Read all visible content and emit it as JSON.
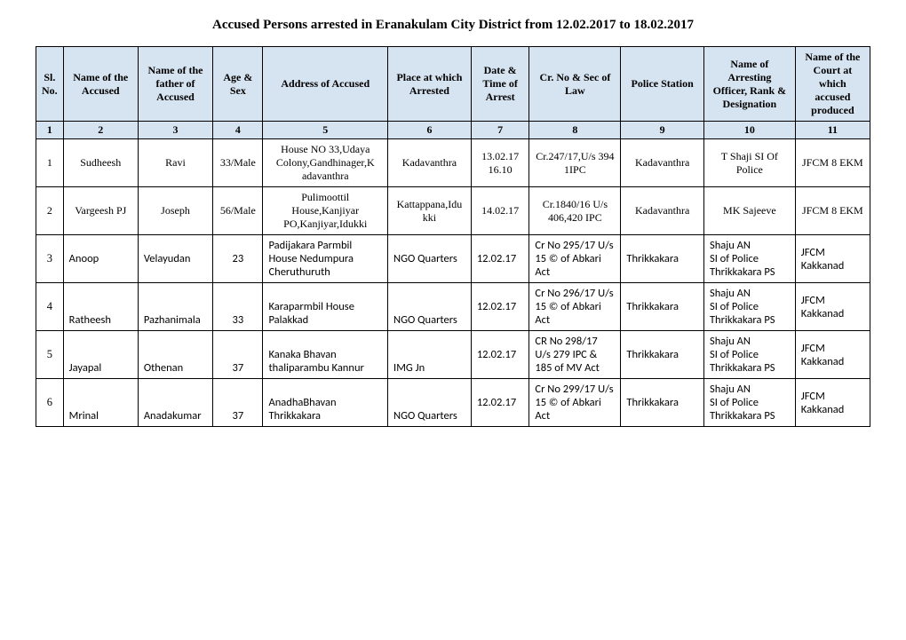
{
  "title": "Accused Persons arrested in   Eranakulam City    District from    12.02.2017 to 18.02.2017",
  "headers": {
    "sl": "Sl. No.",
    "name": "Name of the Accused",
    "father": "Name of the father of Accused",
    "age": "Age & Sex",
    "address": "Address of Accused",
    "place": "Place at which Arrested",
    "datetime": "Date & Time of Arrest",
    "crno": "Cr. No & Sec of Law",
    "station": "Police Station",
    "officer": "Name of Arresting Officer, Rank & Designation",
    "court": "Name of the Court at which accused produced"
  },
  "colnums": [
    "1",
    "2",
    "3",
    "4",
    "5",
    "6",
    "7",
    "8",
    "9",
    "10",
    "11"
  ],
  "rows": [
    {
      "sl": "1",
      "name": "Sudheesh",
      "father": "Ravi",
      "age": "33/Male",
      "address": "House NO  33,Udaya Colony,Gandhinager,K adavanthra",
      "place": "Kadavanthra",
      "datetime": "13.02.17 16.10",
      "crno": "Cr.247/17,U/s 394 1IPC",
      "station": "Kadavanthra",
      "officer": "T Shaji SI Of Police",
      "court": "JFCM 8 EKM",
      "style": "center"
    },
    {
      "sl": "2",
      "name": "Vargeesh PJ",
      "father": "Joseph",
      "age": "56/Male",
      "address": "Pulimoottil House,Kanjiyar PO,Kanjiyar,Idukki",
      "place": "Kattappana,Idu kki",
      "datetime": "14.02.17",
      "crno": "Cr.1840/16 U/s 406,420 IPC",
      "station": "Kadavanthra",
      "officer": "MK Sajeeve",
      "court": "JFCM 8 EKM",
      "style": "center"
    },
    {
      "sl": "3",
      "name": "Anoop",
      "father": "Velayudan",
      "age": "23",
      "address": "Padijakara Parmbil House\nNedumpura Cheruthuruth",
      "place": "NGO Quarters",
      "datetime": "12.02.17",
      "crno": "Cr No 295/17 U/s 15 © of Abkari Act",
      "station": "Thrikkakara",
      "officer": "Shaju AN\nSI of Police Thrikkakara PS",
      "court": "JFCM Kakkanad",
      "style": "calibri"
    },
    {
      "sl": "4",
      "name": "Ratheesh",
      "father": "Pazhanimala",
      "age": "33",
      "address": "Karaparmbil House Palakkad",
      "place": "NGO Quarters",
      "datetime": "12.02.17",
      "crno": "Cr No 296/17 U/s 15 © of Abkari Act",
      "station": "Thrikkakara",
      "officer": "Shaju AN\nSI of Police Thrikkakara PS",
      "court": "JFCM Kakkanad",
      "style": "calibri-bottom"
    },
    {
      "sl": "5",
      "name": "Jayapal",
      "father": "Othenan",
      "age": "37",
      "address": "Kanaka Bhavan thaliparambu Kannur",
      "place": "IMG Jn",
      "datetime": "12.02.17",
      "crno": "CR No 298/17 U/s 279 IPC & 185 of MV Act",
      "station": "Thrikkakara",
      "officer": "Shaju AN\nSI of Police Thrikkakara PS",
      "court": "JFCM Kakkanad",
      "style": "calibri-bottom"
    },
    {
      "sl": "6",
      "name": "Mrinal",
      "father": "Anadakumar",
      "age": "37",
      "address": "AnadhaBhavan Thrikkakara",
      "place": "NGO Quarters",
      "datetime": "12.02.17",
      "crno": "Cr No 299/17 U/s 15 © of Abkari Act",
      "station": "Thrikkakara",
      "officer": "Shaju AN\nSI of Police Thrikkakara PS",
      "court": "JFCM Kakkanad",
      "style": "calibri-bottom"
    }
  ]
}
